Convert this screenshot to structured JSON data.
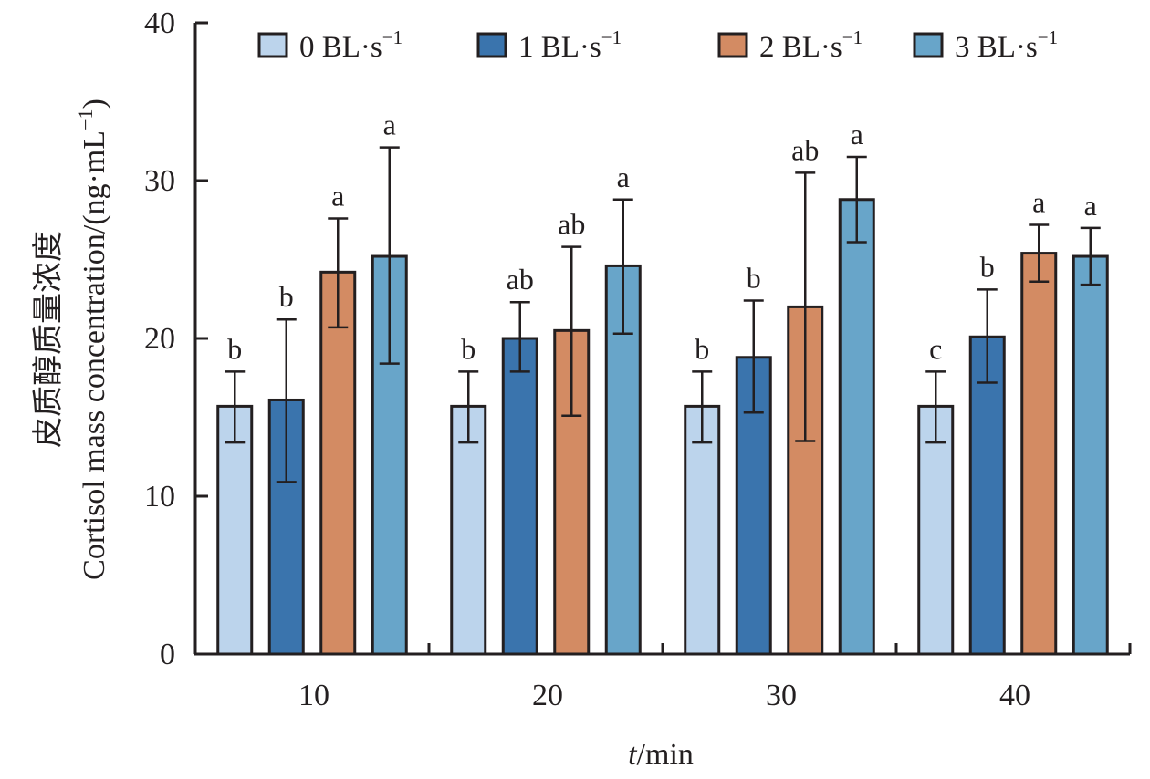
{
  "chart_data": {
    "type": "bar",
    "title": "",
    "xlabel_italic": "t",
    "xlabel_rest": "/min",
    "ylabel_cn": "皮质醇质量浓度",
    "ylabel_en": "Cortisol mass concentration/(ng·mL",
    "ylabel_sup": "−1",
    "ylabel_close": ")",
    "ylim": [
      0,
      40
    ],
    "yticks": [
      "0",
      "10",
      "20",
      "30",
      "40"
    ],
    "ytick_values": [
      0,
      10,
      20,
      30,
      40
    ],
    "categories": [
      "10",
      "20",
      "30",
      "40"
    ],
    "legend_position": "top",
    "series": [
      {
        "name": "0 BL·s",
        "sup": "−1",
        "color": "#bcd4ec",
        "values": [
          15.7,
          15.7,
          15.7,
          15.7
        ],
        "err_high": [
          17.9,
          17.9,
          17.9,
          17.9
        ],
        "err_low": [
          13.4,
          13.4,
          13.4,
          13.4
        ],
        "labels": [
          "b",
          "b",
          "b",
          "c"
        ]
      },
      {
        "name": "1 BL·s",
        "sup": "−1",
        "color": "#3a74ad",
        "values": [
          16.1,
          20.0,
          18.8,
          20.1
        ],
        "err_high": [
          21.2,
          22.3,
          22.4,
          23.1
        ],
        "err_low": [
          10.9,
          17.9,
          15.3,
          17.2
        ],
        "labels": [
          "b",
          "ab",
          "b",
          "b"
        ]
      },
      {
        "name": "2 BL·s",
        "sup": "−1",
        "color": "#d38b63",
        "values": [
          24.2,
          20.5,
          22.0,
          25.4
        ],
        "err_high": [
          27.6,
          25.8,
          30.5,
          27.2
        ],
        "err_low": [
          20.7,
          15.1,
          13.5,
          23.6
        ],
        "labels": [
          "a",
          "ab",
          "ab",
          "a"
        ]
      },
      {
        "name": "3 BL·s",
        "sup": "−1",
        "color": "#68a5c9",
        "values": [
          25.2,
          24.6,
          28.8,
          25.2
        ],
        "err_high": [
          32.1,
          28.8,
          31.5,
          27.0
        ],
        "err_low": [
          18.4,
          20.3,
          26.1,
          23.4
        ],
        "labels": [
          "a",
          "a",
          "a",
          "a"
        ]
      }
    ]
  }
}
